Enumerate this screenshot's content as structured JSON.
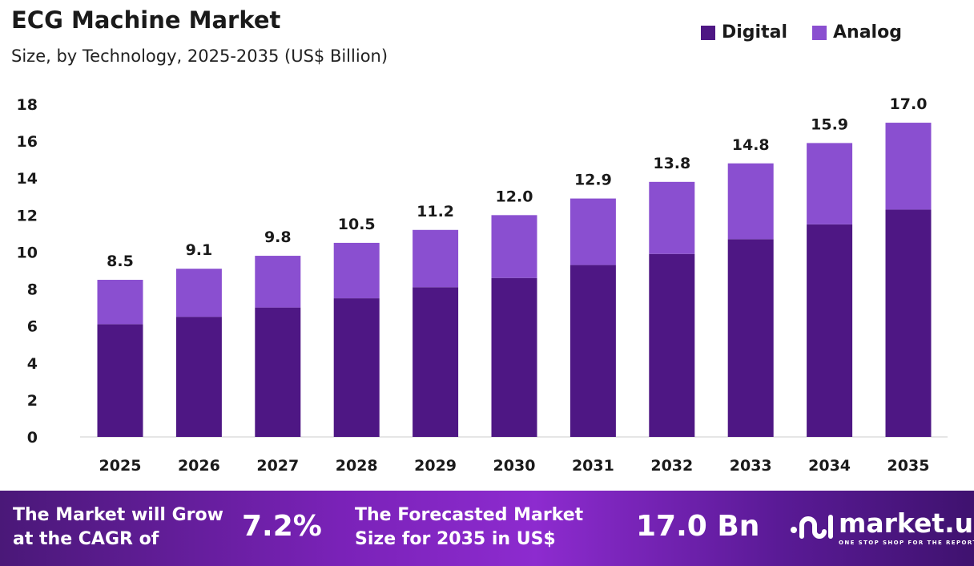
{
  "title": "ECG Machine Market",
  "subtitle": "Size, by Technology, 2025-2035 (US$ Billion)",
  "chart_data": {
    "type": "bar",
    "stacked": true,
    "title": "ECG Machine Market",
    "subtitle": "Size, by Technology, 2025-2035 (US$ Billion)",
    "categories": [
      "2025",
      "2026",
      "2027",
      "2028",
      "2029",
      "2030",
      "2031",
      "2032",
      "2033",
      "2034",
      "2035"
    ],
    "series": [
      {
        "name": "Digital",
        "color": "#4e1784",
        "values": [
          6.1,
          6.5,
          7.0,
          7.5,
          8.1,
          8.6,
          9.3,
          9.9,
          10.7,
          11.5,
          12.3
        ]
      },
      {
        "name": "Analog",
        "color": "#8a4fd0",
        "values": [
          2.4,
          2.6,
          2.8,
          3.0,
          3.1,
          3.4,
          3.6,
          3.9,
          4.1,
          4.4,
          4.7
        ]
      }
    ],
    "totals": [
      8.5,
      9.1,
      9.8,
      10.5,
      11.2,
      12.0,
      12.9,
      13.8,
      14.8,
      15.9,
      17.0
    ],
    "total_labels": [
      "8.5",
      "9.1",
      "9.8",
      "10.5",
      "11.2",
      "12.0",
      "12.9",
      "13.8",
      "14.8",
      "15.9",
      "17.0"
    ],
    "yticks": [
      "0",
      "2",
      "4",
      "6",
      "8",
      "10",
      "12",
      "14",
      "16",
      "18"
    ],
    "ylim": [
      0,
      18
    ],
    "grid": false,
    "legend": "top-right",
    "xlabel": "",
    "ylabel": ""
  },
  "footer": {
    "cagr_text": "The Market will Grow at the CAGR of",
    "cagr_line1": "The Market will Grow",
    "cagr_line2": "at the CAGR of",
    "cagr_value": "7.2%",
    "forecast_line1": "The Forecasted Market",
    "forecast_line2": "Size for 2035 in US$",
    "forecast_value": "17.0 Bn",
    "logo_name": "market.us",
    "logo_tagline": "ONE STOP SHOP FOR THE REPORTS"
  }
}
